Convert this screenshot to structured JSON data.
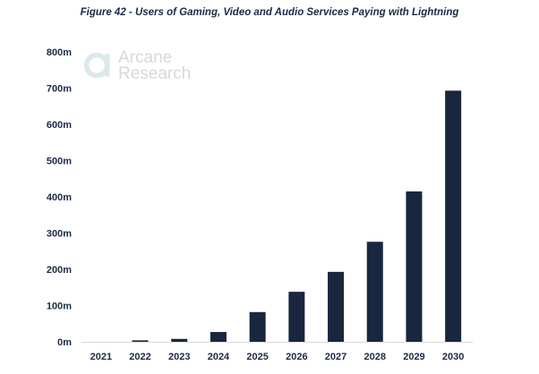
{
  "chart_data": {
    "type": "bar",
    "title": "Figure 42 - Users of Gaming, Video and Audio Services Paying with Lightning",
    "categories": [
      "2021",
      "2022",
      "2023",
      "2024",
      "2025",
      "2026",
      "2027",
      "2028",
      "2029",
      "2030"
    ],
    "values": [
      0,
      4,
      8,
      27,
      82,
      138,
      193,
      276,
      415,
      693
    ],
    "unit": "m",
    "xlabel": "",
    "ylabel": "",
    "ylim": [
      0,
      800
    ],
    "yticks": [
      "0m",
      "100m",
      "200m",
      "300m",
      "400m",
      "500m",
      "600m",
      "700m",
      "800m"
    ],
    "grid": false,
    "legend": "none",
    "bar_color": "#182640"
  },
  "watermark": {
    "line1": "Arcane",
    "line2": "Research",
    "color": "#d4d9de"
  }
}
